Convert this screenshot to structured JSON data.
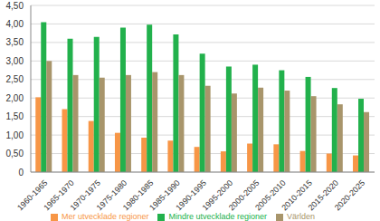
{
  "chart_data": {
    "type": "bar",
    "categories": [
      "1960-1965",
      "1965-1970",
      "1970-1975",
      "1975-1980",
      "1980-1985",
      "1985-1990",
      "1990-1995",
      "1995-2000",
      "2000-2005",
      "2005-2010",
      "2010-2015",
      "2015-2020",
      "2020-2025"
    ],
    "series": [
      {
        "name": "Mer utvecklade regioner",
        "color": "#f79646",
        "values": [
          2.02,
          1.7,
          1.38,
          1.06,
          0.93,
          0.85,
          0.68,
          0.56,
          0.77,
          0.75,
          0.57,
          0.5,
          0.45
        ]
      },
      {
        "name": "Mindre utvecklade regioner",
        "color": "#22b14c",
        "values": [
          4.05,
          3.6,
          3.65,
          3.9,
          3.98,
          3.72,
          3.2,
          2.85,
          2.9,
          2.75,
          2.57,
          2.27,
          1.98
        ]
      },
      {
        "name": "Världen",
        "color": "#a8956b",
        "values": [
          3.0,
          2.62,
          2.55,
          2.62,
          2.7,
          2.62,
          2.33,
          2.12,
          2.28,
          2.2,
          2.05,
          1.83,
          1.62
        ]
      }
    ],
    "ylim": [
      0,
      4.5
    ],
    "yticks": [
      0,
      {
        "value": 0.5,
        "label": "0,50"
      },
      {
        "value": 1,
        "label": "1,00"
      },
      {
        "value": 1.5,
        "label": "1,50"
      },
      {
        "value": 2,
        "label": "2,00"
      },
      {
        "value": 2.5,
        "label": "2,50"
      },
      {
        "value": 3,
        "label": "3,00"
      },
      {
        "value": 3.5,
        "label": "3,50"
      },
      {
        "value": 4,
        "label": "4,00"
      },
      {
        "value": 4.5,
        "label": "4,50"
      }
    ],
    "grid": true,
    "legend": "bottom"
  }
}
